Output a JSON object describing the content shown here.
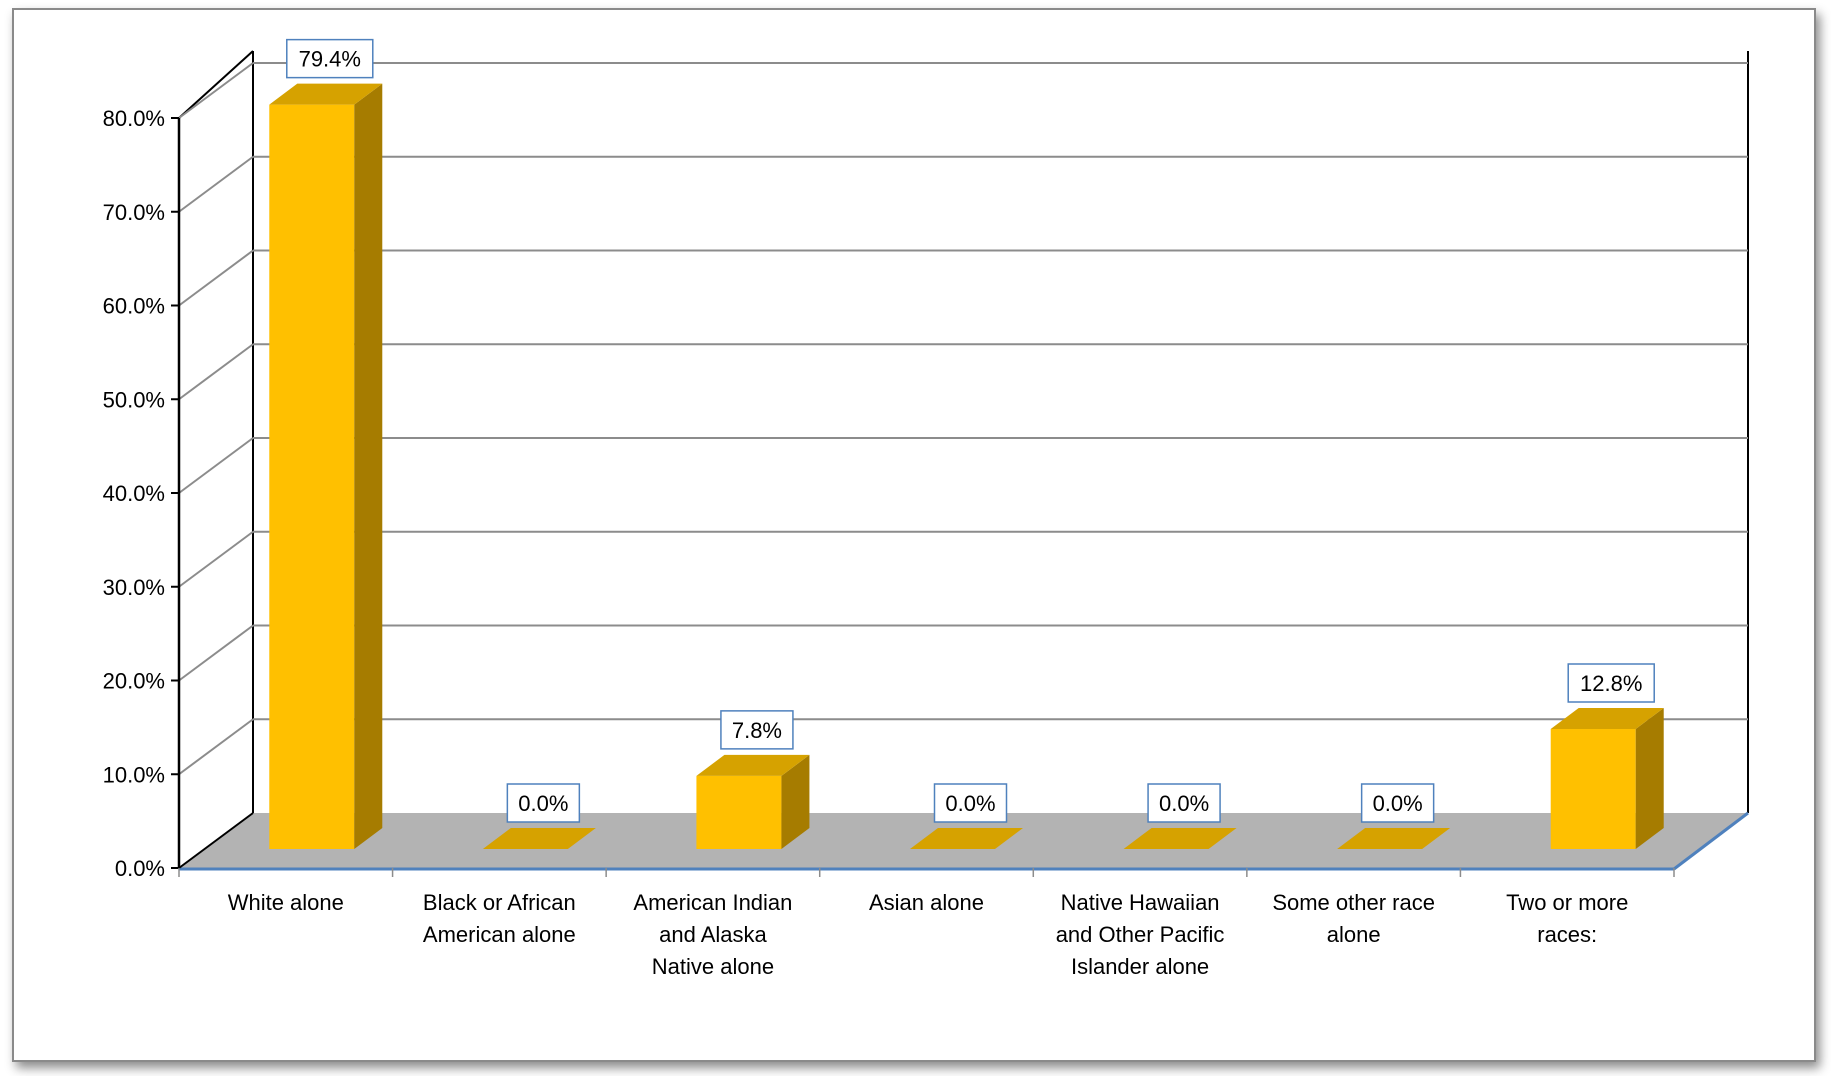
{
  "chart_data": {
    "type": "bar",
    "title": "",
    "xlabel": "",
    "ylabel": "",
    "three_d": true,
    "categories": [
      [
        "White alone"
      ],
      [
        "Black or African",
        "American alone"
      ],
      [
        "American Indian",
        "and Alaska",
        "Native alone"
      ],
      [
        "Asian alone"
      ],
      [
        "Native Hawaiian",
        "and Other Pacific",
        "Islander alone"
      ],
      [
        "Some other race",
        "alone"
      ],
      [
        "Two or more",
        "races:"
      ]
    ],
    "values": [
      79.4,
      0.0,
      7.8,
      0.0,
      0.0,
      0.0,
      12.8
    ],
    "data_labels": [
      "79.4%",
      "0.0%",
      "7.8%",
      "0.0%",
      "0.0%",
      "0.0%",
      "12.8%"
    ],
    "y_ticks": [
      0,
      10,
      20,
      30,
      40,
      50,
      60,
      70,
      80
    ],
    "y_tick_labels": [
      "0.0%",
      "10.0%",
      "20.0%",
      "30.0%",
      "40.0%",
      "50.0%",
      "60.0%",
      "70.0%",
      "80.0%"
    ],
    "ylim": [
      0,
      80
    ],
    "grid": true,
    "legend": "none",
    "colors": {
      "bar_front": "#FFC000",
      "bar_side": "#A67C00",
      "bar_top": "#D6A200",
      "floor": "#B3B3B3",
      "axis_line": "#4F81BD",
      "grid": "#8C8C8C",
      "label_border": "#4F81BD"
    }
  }
}
